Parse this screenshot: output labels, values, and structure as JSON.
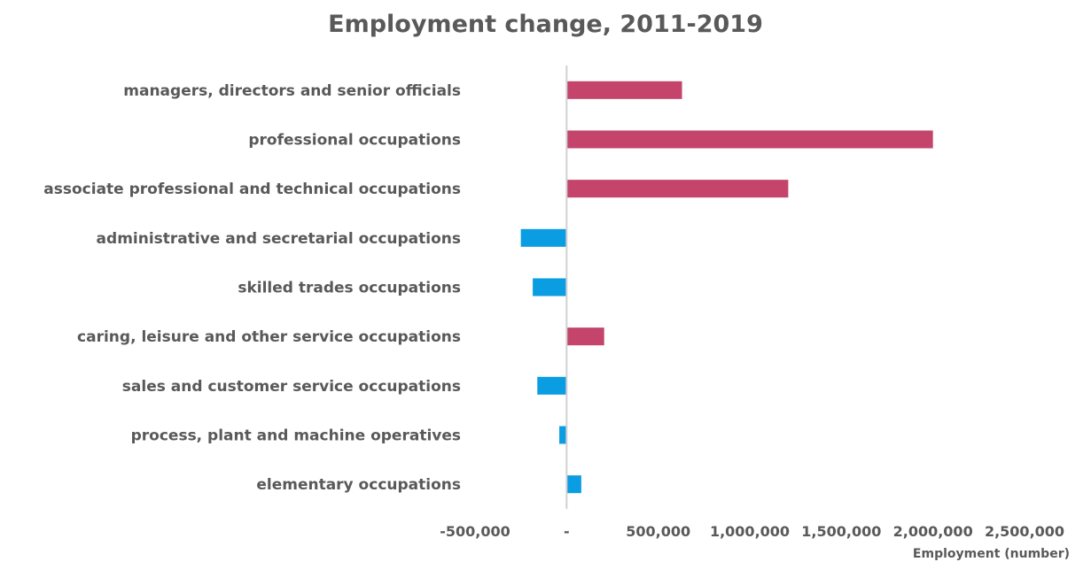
{
  "chart_data": {
    "type": "bar",
    "orientation": "horizontal",
    "title": "Employment change, 2011-2019",
    "xlabel": "Employment (number)",
    "ylabel": "",
    "xlim": [
      -500000,
      2500000
    ],
    "grid": false,
    "legend": "none",
    "x_ticks": [
      {
        "value": -500000,
        "label": "-500,000"
      },
      {
        "value": 0,
        "label": "-"
      },
      {
        "value": 500000,
        "label": "500,000"
      },
      {
        "value": 1000000,
        "label": "1,000,000"
      },
      {
        "value": 1500000,
        "label": "1,500,000"
      },
      {
        "value": 2000000,
        "label": "2,000,000"
      },
      {
        "value": 2500000,
        "label": "2,500,000"
      }
    ],
    "categories": [
      "managers, directors and senior officials",
      "professional occupations",
      "associate professional and technical occupations",
      "administrative and secretarial occupations",
      "skilled trades occupations",
      "caring, leisure and other service occupations",
      "sales and customer service occupations",
      "process, plant and machine operatives",
      "elementary occupations"
    ],
    "values": [
      630000,
      2000000,
      1210000,
      -250000,
      -185000,
      205000,
      -160000,
      -40000,
      80000
    ],
    "colors": [
      "#c4446b",
      "#c4446b",
      "#c4446b",
      "#0a9de2",
      "#0a9de2",
      "#c4446b",
      "#0a9de2",
      "#0a9de2",
      "#0a9de2"
    ]
  }
}
